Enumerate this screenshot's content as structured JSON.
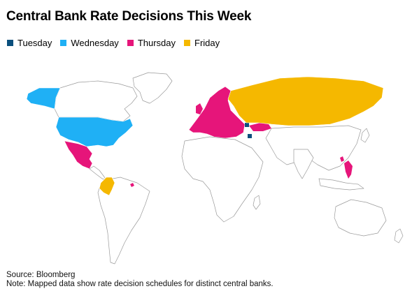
{
  "title": "Central Bank Rate Decisions This Week",
  "legend": [
    {
      "label": "Tuesday",
      "color": "#0b4f7d"
    },
    {
      "label": "Wednesday",
      "color": "#1fb0f5"
    },
    {
      "label": "Thursday",
      "color": "#e6157a"
    },
    {
      "label": "Friday",
      "color": "#f5b800"
    }
  ],
  "footer": {
    "source": "Source: Bloomberg",
    "note": "Note: Mapped data show rate decision schedules for distinct central banks."
  }
}
